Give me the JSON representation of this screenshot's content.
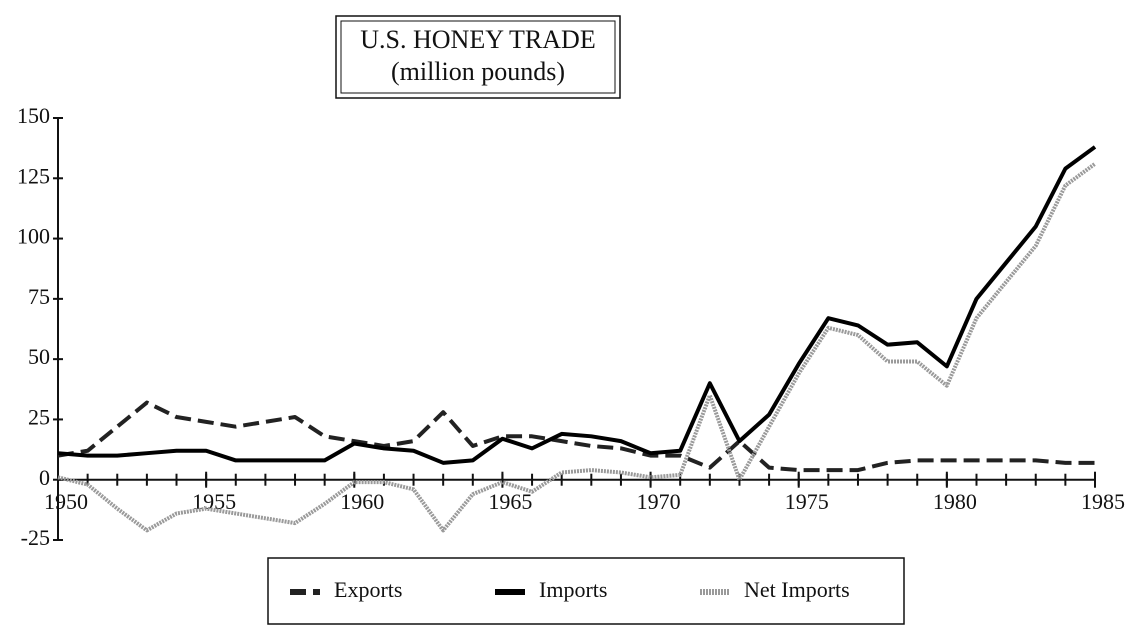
{
  "chart_data": {
    "type": "line",
    "title": "U.S. HONEY TRADE",
    "subtitle": "(million pounds)",
    "x": [
      1950,
      1951,
      1952,
      1953,
      1954,
      1955,
      1956,
      1957,
      1958,
      1959,
      1960,
      1961,
      1962,
      1963,
      1964,
      1965,
      1966,
      1967,
      1968,
      1969,
      1970,
      1971,
      1972,
      1973,
      1974,
      1975,
      1976,
      1977,
      1978,
      1979,
      1980,
      1981,
      1982,
      1983,
      1984,
      1985
    ],
    "xlim": [
      1950,
      1985
    ],
    "xticks": [
      1950,
      1955,
      1960,
      1965,
      1970,
      1975,
      1980,
      1985
    ],
    "ylim": [
      -25,
      150
    ],
    "yticks": [
      -25,
      0,
      25,
      50,
      75,
      100,
      125,
      150
    ],
    "series": [
      {
        "name": "Exports",
        "color": "#222222",
        "line_style": "dashed",
        "values": [
          10,
          12,
          22,
          32,
          26,
          24,
          22,
          24,
          26,
          18,
          16,
          14,
          16,
          28,
          14,
          18,
          18,
          16,
          14,
          13,
          10,
          10,
          5,
          16,
          5,
          4,
          4,
          4,
          7,
          8,
          8,
          8,
          8,
          8,
          7,
          7
        ]
      },
      {
        "name": "Imports",
        "color": "#000000",
        "line_style": "solid",
        "values": [
          11,
          10,
          10,
          11,
          12,
          12,
          8,
          8,
          8,
          8,
          15,
          13,
          12,
          7,
          8,
          17,
          13,
          19,
          18,
          16,
          11,
          12,
          40,
          16,
          27,
          48,
          67,
          64,
          56,
          57,
          47,
          75,
          90,
          105,
          129,
          138
        ]
      },
      {
        "name": "Net Imports",
        "color": "#9a9a9a",
        "line_style": "dotted",
        "values": [
          1,
          -2,
          -12,
          -21,
          -14,
          -12,
          -14,
          -16,
          -18,
          -10,
          -1,
          -1,
          -4,
          -21,
          -6,
          -1,
          -5,
          3,
          4,
          3,
          1,
          2,
          35,
          0,
          22,
          44,
          63,
          60,
          49,
          49,
          39,
          67,
          82,
          97,
          122,
          131
        ]
      }
    ]
  }
}
